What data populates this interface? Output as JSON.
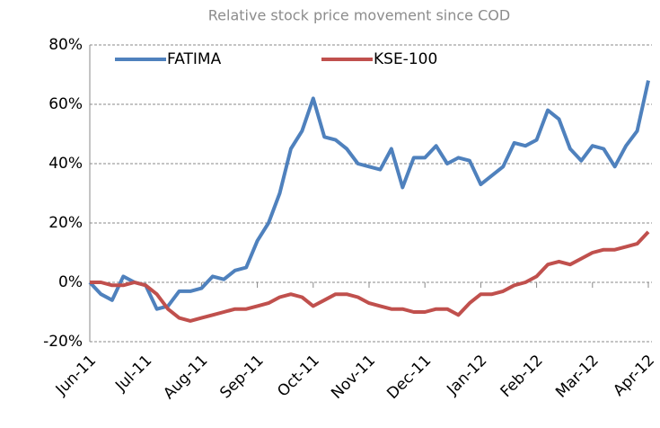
{
  "chart_data": {
    "type": "line",
    "title": "Relative stock price movement since COD",
    "categories": [
      "Jun-11",
      null,
      null,
      null,
      null,
      "Jul-11",
      null,
      null,
      null,
      null,
      "Aug-11",
      null,
      null,
      null,
      null,
      "Sep-11",
      null,
      null,
      null,
      null,
      "Oct-11",
      null,
      null,
      null,
      null,
      "Nov-11",
      null,
      null,
      null,
      null,
      "Dec-11",
      null,
      null,
      null,
      null,
      "Jan-12",
      null,
      null,
      null,
      null,
      "Feb-12",
      null,
      null,
      null,
      null,
      "Mar-12",
      null,
      null,
      null,
      null,
      "Apr-12"
    ],
    "series": [
      {
        "name": "FATIMA",
        "color": "#4f81bd",
        "values": [
          0,
          -4,
          -6,
          2,
          0,
          -1,
          -9,
          -8,
          -3,
          -3,
          -2,
          2,
          1,
          4,
          5,
          14,
          20,
          30,
          45,
          51,
          62,
          49,
          48,
          45,
          40,
          39,
          38,
          45,
          32,
          42,
          42,
          46,
          40,
          42,
          41,
          33,
          36,
          39,
          47,
          46,
          48,
          58,
          55,
          45,
          41,
          46,
          45,
          39,
          46,
          51,
          68
        ]
      },
      {
        "name": "KSE-100",
        "color": "#c0504d",
        "values": [
          0,
          0,
          -1,
          -1,
          0,
          -1,
          -4,
          -9,
          -12,
          -13,
          -12,
          -11,
          -10,
          -9,
          -9,
          -8,
          -7,
          -5,
          -4,
          -5,
          -8,
          -6,
          -4,
          -4,
          -5,
          -7,
          -8,
          -9,
          -9,
          -10,
          -10,
          -9,
          -9,
          -11,
          -7,
          -4,
          -4,
          -3,
          -1,
          0,
          2,
          6,
          7,
          6,
          8,
          10,
          11,
          11,
          12,
          13,
          17
        ]
      }
    ],
    "ylim": [
      -20,
      80
    ],
    "yticks": [
      {
        "value": -20,
        "label": "-20%"
      },
      {
        "value": 0,
        "label": "0%"
      },
      {
        "value": 20,
        "label": "20%"
      },
      {
        "value": 40,
        "label": "40%"
      },
      {
        "value": 60,
        "label": "60%"
      },
      {
        "value": 80,
        "label": "80%"
      }
    ],
    "grid": true,
    "legend": "top"
  }
}
